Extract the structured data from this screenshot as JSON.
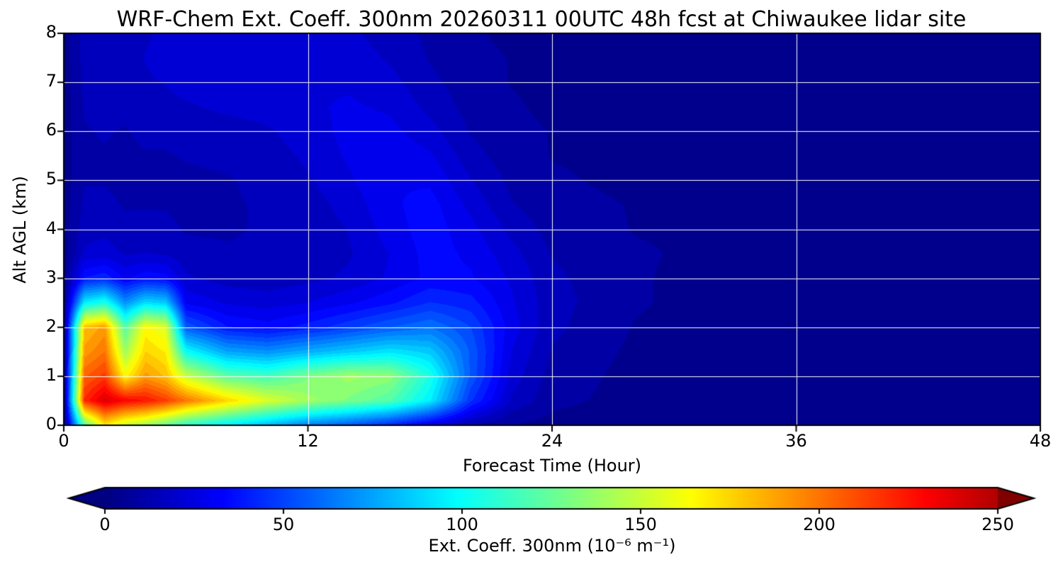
{
  "chart_data": {
    "type": "heatmap",
    "title": "WRF-Chem Ext. Coeff. 300nm  20260311 00UTC 48h fcst at Chiwaukee lidar site",
    "xlabel": "Forecast Time (Hour)",
    "ylabel": "Alt AGL (km)",
    "x_range": [
      0,
      48
    ],
    "y_range": [
      0,
      8
    ],
    "x_ticks": [
      0,
      12,
      24,
      36,
      48
    ],
    "y_ticks": [
      0,
      1,
      2,
      3,
      4,
      5,
      6,
      7,
      8
    ],
    "gridlines": {
      "x": [
        12,
        24,
        36
      ],
      "y": [
        1,
        2,
        3,
        4,
        5,
        6,
        7
      ],
      "color": "#ffffff"
    },
    "colormap": "jet",
    "color_vmax": 262.5,
    "level_step": 6.25,
    "grid_x": [
      0,
      1,
      2,
      3,
      4,
      5,
      6,
      8,
      10,
      12,
      14,
      16,
      18,
      20,
      22,
      24,
      28,
      32,
      36,
      40,
      44,
      48
    ],
    "grid_y": [
      0,
      0.5,
      1,
      1.5,
      2,
      2.5,
      3,
      3.5,
      4,
      4.5,
      5,
      5.5,
      6,
      6.5,
      7,
      7.5,
      8
    ],
    "values": [
      [
        3,
        120,
        170,
        150,
        140,
        125,
        110,
        95,
        80,
        65,
        55,
        42,
        26,
        12,
        6,
        4,
        3,
        3,
        3,
        3,
        3,
        3
      ],
      [
        4,
        220,
        240,
        230,
        225,
        215,
        200,
        175,
        155,
        140,
        130,
        120,
        95,
        45,
        18,
        8,
        4,
        3,
        3,
        3,
        3,
        3
      ],
      [
        4,
        205,
        215,
        165,
        190,
        180,
        150,
        122,
        115,
        130,
        140,
        135,
        105,
        55,
        22,
        10,
        4,
        3,
        3,
        3,
        3,
        3
      ],
      [
        3,
        190,
        200,
        140,
        175,
        168,
        100,
        75,
        70,
        78,
        85,
        92,
        85,
        55,
        25,
        12,
        5,
        3,
        3,
        3,
        3,
        3
      ],
      [
        3,
        180,
        190,
        120,
        165,
        155,
        55,
        38,
        34,
        40,
        48,
        56,
        62,
        50,
        28,
        14,
        6,
        3,
        3,
        4,
        4,
        3
      ],
      [
        3,
        95,
        105,
        70,
        90,
        85,
        30,
        24,
        22,
        25,
        30,
        36,
        44,
        40,
        26,
        15,
        7,
        4,
        4,
        4,
        4,
        3
      ],
      [
        3,
        38,
        42,
        30,
        36,
        34,
        20,
        16,
        15,
        17,
        20,
        26,
        33,
        32,
        24,
        14,
        7,
        4,
        4,
        5,
        5,
        3
      ],
      [
        3,
        20,
        22,
        18,
        19,
        18,
        14,
        13,
        13,
        15,
        18,
        25,
        34,
        30,
        21,
        12,
        7,
        5,
        5,
        5,
        4,
        3
      ],
      [
        3,
        16,
        17,
        14,
        15,
        14,
        12,
        12,
        13,
        15,
        19,
        28,
        35,
        27,
        17,
        10,
        6,
        5,
        6,
        5,
        4,
        3
      ],
      [
        3,
        14,
        14,
        12,
        12,
        12,
        11,
        12,
        13,
        16,
        21,
        30,
        34,
        23,
        13,
        8,
        6,
        6,
        6,
        5,
        4,
        3
      ],
      [
        3,
        12,
        12,
        11,
        11,
        11,
        11,
        12,
        14,
        18,
        24,
        31,
        30,
        19,
        11,
        7,
        5,
        6,
        6,
        5,
        4,
        3
      ],
      [
        3,
        12,
        12,
        11,
        12,
        12,
        13,
        14,
        16,
        20,
        26,
        30,
        26,
        15,
        9,
        6,
        5,
        6,
        5,
        4,
        4,
        3
      ],
      [
        3,
        12,
        13,
        12,
        14,
        14,
        15,
        16,
        18,
        22,
        27,
        27,
        21,
        12,
        8,
        6,
        5,
        5,
        5,
        4,
        4,
        3
      ],
      [
        3,
        13,
        15,
        14,
        16,
        17,
        18,
        20,
        21,
        24,
        26,
        24,
        17,
        10,
        7,
        5,
        4,
        5,
        4,
        4,
        3,
        3
      ],
      [
        3,
        14,
        16,
        15,
        18,
        19,
        21,
        22,
        22,
        24,
        24,
        21,
        14,
        9,
        6,
        5,
        4,
        4,
        4,
        4,
        3,
        3
      ],
      [
        3,
        15,
        17,
        16,
        19,
        21,
        23,
        22,
        22,
        23,
        22,
        18,
        12,
        8,
        6,
        4,
        4,
        4,
        4,
        3,
        3,
        3
      ],
      [
        3,
        15,
        17,
        16,
        18,
        20,
        22,
        21,
        20,
        21,
        20,
        16,
        11,
        7,
        5,
        4,
        3,
        3,
        3,
        3,
        3,
        3
      ]
    ],
    "colorbar": {
      "ticks": [
        0,
        50,
        100,
        150,
        200,
        250
      ],
      "range": [
        0,
        250
      ],
      "extend": "both",
      "label": "Ext. Coeff. 300nm  (10⁻⁶ m⁻¹)"
    }
  }
}
